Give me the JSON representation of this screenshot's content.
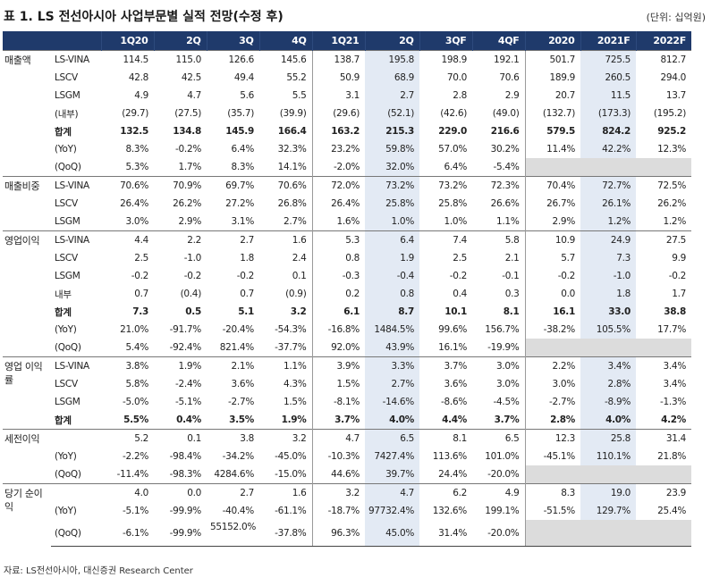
{
  "title": "표 1.  LS 전선아시아 사업부문별 실적 전망(수정 후)",
  "unit": "(단위: 십억원)",
  "columns": [
    "",
    "",
    "1Q20",
    "2Q",
    "3Q",
    "4Q",
    "1Q21",
    "2Q",
    "3QF",
    "4QF",
    "2020",
    "2021F",
    "2022F"
  ],
  "rows": [
    [
      "매출액",
      "LS-VINA",
      "114.5",
      "115.0",
      "126.6",
      "145.6",
      "138.7",
      "195.8",
      "198.9",
      "192.1",
      "501.7",
      "725.5",
      "812.7"
    ],
    [
      "",
      "LSCV",
      "42.8",
      "42.5",
      "49.4",
      "55.2",
      "50.9",
      "68.9",
      "70.0",
      "70.6",
      "189.9",
      "260.5",
      "294.0"
    ],
    [
      "",
      "LSGM",
      "4.9",
      "4.7",
      "5.6",
      "5.5",
      "3.1",
      "2.7",
      "2.8",
      "2.9",
      "20.7",
      "11.5",
      "13.7"
    ],
    [
      "",
      "(내부)",
      "(29.7)",
      "(27.5)",
      "(35.7)",
      "(39.9)",
      "(29.6)",
      "(52.1)",
      "(42.6)",
      "(49.0)",
      "(132.7)",
      "(173.3)",
      "(195.2)"
    ],
    [
      "",
      "합계",
      "132.5",
      "134.8",
      "145.9",
      "166.4",
      "163.2",
      "215.3",
      "229.0",
      "216.6",
      "579.5",
      "824.2",
      "925.2"
    ],
    [
      "",
      "(YoY)",
      "8.3%",
      "-0.2%",
      "6.4%",
      "32.3%",
      "23.2%",
      "59.8%",
      "57.0%",
      "30.2%",
      "11.4%",
      "42.2%",
      "12.3%"
    ],
    [
      "",
      "(QoQ)",
      "5.3%",
      "1.7%",
      "8.3%",
      "14.1%",
      "-2.0%",
      "32.0%",
      "6.4%",
      "-5.4%",
      "",
      "",
      ""
    ],
    [
      "매출비중",
      "LS-VINA",
      "70.6%",
      "70.9%",
      "69.7%",
      "70.6%",
      "72.0%",
      "73.2%",
      "73.2%",
      "72.3%",
      "70.4%",
      "72.7%",
      "72.5%"
    ],
    [
      "",
      "LSCV",
      "26.4%",
      "26.2%",
      "27.2%",
      "26.8%",
      "26.4%",
      "25.8%",
      "25.8%",
      "26.6%",
      "26.7%",
      "26.1%",
      "26.2%"
    ],
    [
      "",
      "LSGM",
      "3.0%",
      "2.9%",
      "3.1%",
      "2.7%",
      "1.6%",
      "1.0%",
      "1.0%",
      "1.1%",
      "2.9%",
      "1.2%",
      "1.2%"
    ],
    [
      "영업이익",
      "LS-VINA",
      "4.4",
      "2.2",
      "2.7",
      "1.6",
      "5.3",
      "6.4",
      "7.4",
      "5.8",
      "10.9",
      "24.9",
      "27.5"
    ],
    [
      "",
      "LSCV",
      "2.5",
      "-1.0",
      "1.8",
      "2.4",
      "0.8",
      "1.9",
      "2.5",
      "2.1",
      "5.7",
      "7.3",
      "9.9"
    ],
    [
      "",
      "LSGM",
      "-0.2",
      "-0.2",
      "-0.2",
      "0.1",
      "-0.3",
      "-0.4",
      "-0.2",
      "-0.1",
      "-0.2",
      "-1.0",
      "-0.2"
    ],
    [
      "",
      "내부",
      "0.7",
      "(0.4)",
      "0.7",
      "(0.9)",
      "0.2",
      "0.8",
      "0.4",
      "0.3",
      "0.0",
      "1.8",
      "1.7"
    ],
    [
      "",
      "합계",
      "7.3",
      "0.5",
      "5.1",
      "3.2",
      "6.1",
      "8.7",
      "10.1",
      "8.1",
      "16.1",
      "33.0",
      "38.8"
    ],
    [
      "",
      "(YoY)",
      "21.0%",
      "-91.7%",
      "-20.4%",
      "-54.3%",
      "-16.8%",
      "1484.5%",
      "99.6%",
      "156.7%",
      "-38.2%",
      "105.5%",
      "17.7%"
    ],
    [
      "",
      "(QoQ)",
      "5.4%",
      "-92.4%",
      "821.4%",
      "-37.7%",
      "92.0%",
      "43.9%",
      "16.1%",
      "-19.9%",
      "",
      "",
      ""
    ],
    [
      "영업 이익률",
      "LS-VINA",
      "3.8%",
      "1.9%",
      "2.1%",
      "1.1%",
      "3.9%",
      "3.3%",
      "3.7%",
      "3.0%",
      "2.2%",
      "3.4%",
      "3.4%"
    ],
    [
      "",
      "LSCV",
      "5.8%",
      "-2.4%",
      "3.6%",
      "4.3%",
      "1.5%",
      "2.7%",
      "3.6%",
      "3.0%",
      "3.0%",
      "2.8%",
      "3.4%"
    ],
    [
      "",
      "LSGM",
      "-5.0%",
      "-5.1%",
      "-2.7%",
      "1.5%",
      "-8.1%",
      "-14.6%",
      "-8.6%",
      "-4.5%",
      "-2.7%",
      "-8.9%",
      "-1.3%"
    ],
    [
      "",
      "합계",
      "5.5%",
      "0.4%",
      "3.5%",
      "1.9%",
      "3.7%",
      "4.0%",
      "4.4%",
      "3.7%",
      "2.8%",
      "4.0%",
      "4.2%"
    ],
    [
      "세전이익",
      "",
      "5.2",
      "0.1",
      "3.8",
      "3.2",
      "4.7",
      "6.5",
      "8.1",
      "6.5",
      "12.3",
      "25.8",
      "31.4"
    ],
    [
      "",
      "(YoY)",
      "-2.2%",
      "-98.4%",
      "-34.2%",
      "-45.0%",
      "-10.3%",
      "7427.4%",
      "113.6%",
      "101.0%",
      "-45.1%",
      "110.1%",
      "21.8%"
    ],
    [
      "",
      "(QoQ)",
      "-11.4%",
      "-98.3%",
      "4284.6%",
      "-15.0%",
      "44.6%",
      "39.7%",
      "24.4%",
      "-20.0%",
      "",
      "",
      ""
    ],
    [
      "당기 순이익",
      "",
      "4.0",
      "0.0",
      "2.7",
      "1.6",
      "3.2",
      "4.7",
      "6.2",
      "4.9",
      "8.3",
      "19.0",
      "23.9"
    ],
    [
      "",
      "(YoY)",
      "-5.1%",
      "-99.9%",
      "-40.4%",
      "-61.1%",
      "-18.7%",
      "97732.4%",
      "132.6%",
      "199.1%",
      "-51.5%",
      "129.7%",
      "25.4%"
    ],
    [
      "",
      "(QoQ)",
      "-6.1%",
      "-99.9%",
      "55152.0%",
      "-37.8%",
      "96.3%",
      "45.0%",
      "31.4%",
      "-20.0%",
      "",
      "",
      ""
    ]
  ],
  "source": "자료: LS전선아시아, 대신증권 Research Center"
}
